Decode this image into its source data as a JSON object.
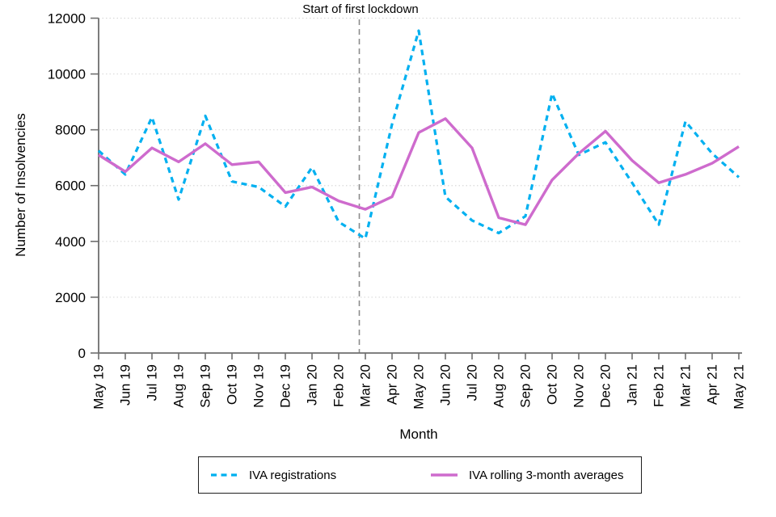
{
  "chart_data": {
    "type": "line",
    "title": "",
    "xlabel": "Month",
    "ylabel": "Number of Insolvencies",
    "x_categories": [
      "May 19",
      "Jun 19",
      "Jul 19",
      "Aug 19",
      "Sep 19",
      "Oct 19",
      "Nov 19",
      "Dec 19",
      "Jan 20",
      "Feb 20",
      "Mar 20",
      "Apr 20",
      "May 20",
      "Jun 20",
      "Jul 20",
      "Aug 20",
      "Sep 20",
      "Oct 20",
      "Nov 20",
      "Dec 20",
      "Jan 21",
      "Feb 21",
      "Mar 21",
      "Apr 21",
      "May 21"
    ],
    "series": [
      {
        "name": "IVA registrations",
        "line_style": "dashed",
        "color": "#00B0F0",
        "values": [
          7250,
          6400,
          8450,
          5500,
          8500,
          6150,
          5950,
          5250,
          6650,
          4700,
          4100,
          8200,
          11550,
          5600,
          4750,
          4300,
          4900,
          9300,
          7100,
          7550,
          6100,
          4600,
          8300,
          7150,
          6300
        ]
      },
      {
        "name": "IVA rolling 3-month averages",
        "line_style": "solid",
        "color": "#CE6BCD",
        "values": [
          7100,
          6500,
          7350,
          6850,
          7500,
          6750,
          6850,
          5750,
          5950,
          5450,
          5150,
          5600,
          7900,
          8400,
          7350,
          4850,
          4600,
          6200,
          7150,
          7950,
          6900,
          6100,
          6400,
          6800,
          7400
        ]
      }
    ],
    "ylim": [
      0,
      12000
    ],
    "yticks": [
      0,
      2000,
      4000,
      6000,
      8000,
      10000,
      12000
    ],
    "grid": "horizontal dotted lines at each y tick",
    "legend_position": "bottom",
    "annotation": {
      "label": "Start of first lockdown",
      "line_style": "vertical gray dashed line",
      "x_position": "between Feb 20 and Mar 20 (approx. 23 March 2020)"
    }
  },
  "legend": {
    "items": [
      {
        "label": "IVA registrations"
      },
      {
        "label": "IVA rolling 3-month averages"
      }
    ]
  },
  "colors": {
    "registrations_line": "#00B0F0",
    "rolling_avg_line": "#CE6BCD",
    "axis": "#6e6e6e",
    "gridline": "#d9d9d9",
    "lockdown_line": "#8c8c8c",
    "text": "#000000"
  }
}
